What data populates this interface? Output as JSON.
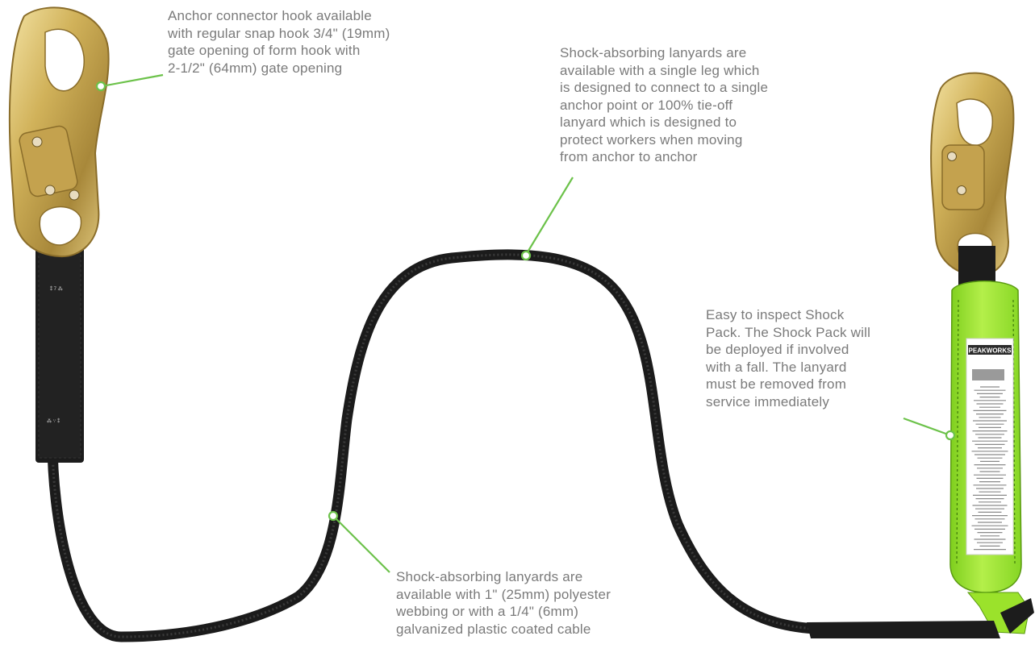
{
  "colors": {
    "callout_line": "#6cc24a",
    "callout_text": "#7a7a7a",
    "webbing": "#1a1a1a",
    "hook_gold": "#c9a94a",
    "shock_pack_green": "#9be22b"
  },
  "callouts": {
    "anchor_hook": {
      "lines": [
        "Anchor connector hook available",
        "with regular snap hook 3/4\" (19mm)",
        "gate opening of form hook with",
        "2-1/2\" (64mm) gate opening"
      ]
    },
    "legs": {
      "lines": [
        "Shock-absorbing lanyards are",
        "available with a single leg which",
        "is designed to connect to a single",
        "anchor point or 100% tie-off",
        "lanyard which is designed to",
        "protect workers when moving",
        "from anchor to anchor"
      ]
    },
    "shock_pack": {
      "lines": [
        "Easy to inspect Shock",
        "Pack. The Shock Pack will",
        "be deployed if involved",
        "with a fall. The lanyard",
        "must be removed from",
        "service immediately"
      ]
    },
    "webbing": {
      "lines": [
        "Shock-absorbing lanyards are",
        "available with 1\" (25mm) polyester",
        "webbing or with a 1/4\" (6mm)",
        "galvanized plastic coated cable"
      ]
    }
  },
  "shock_pack_label": {
    "brand": "PEAKWORKS"
  }
}
